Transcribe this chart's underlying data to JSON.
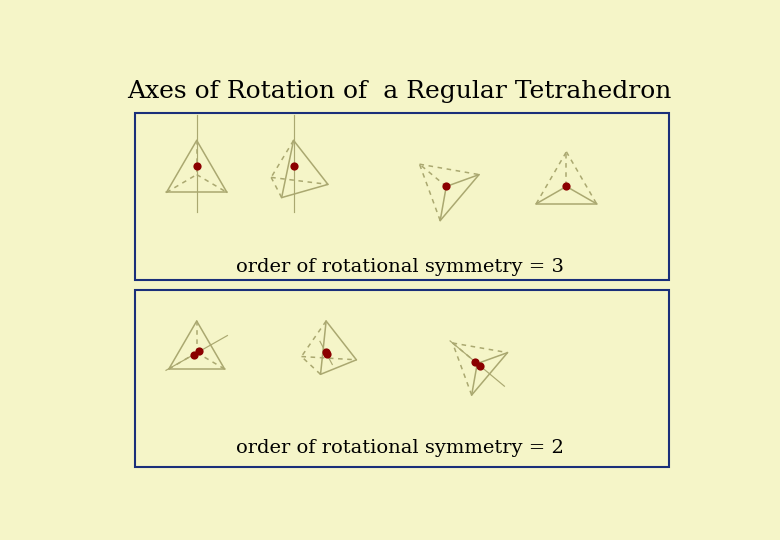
{
  "title": "Axes of Rotation of  a Regular Tetrahedron",
  "title_fontsize": 18,
  "bg_color": "#f5f5c8",
  "box_color": "#1a2f7a",
  "edge_color": "#aaa870",
  "axis_color": "#aaa870",
  "dot_color": "#8b0000",
  "dot_size": 35,
  "text_order3": "order of rotational symmetry = 3",
  "text_order2": "order of rotational symmetry = 2",
  "text_fontsize": 14,
  "edge_lw": 1.1,
  "axis_lw": 0.9
}
